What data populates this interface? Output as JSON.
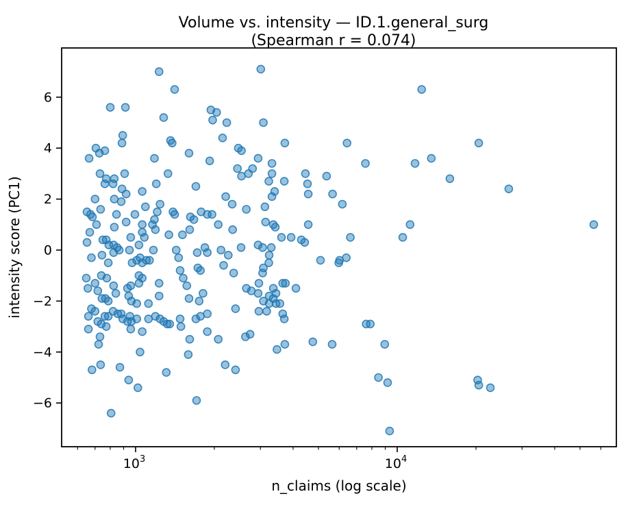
{
  "figure": {
    "title_line1": "Volume vs. intensity — ID.1.general_surg",
    "title_line2": "(Spearman r = 0.074)",
    "xlabel": "n_claims (log scale)",
    "ylabel": "intensity score (PC1)"
  },
  "chart_data": {
    "type": "scatter",
    "title": "Volume vs. intensity — ID.1.general_surg (Spearman r = 0.074)",
    "subtitle_stat": "Spearman r = 0.074",
    "xlabel": "n_claims (log scale)",
    "ylabel": "intensity score (PC1)",
    "x_scale": "log",
    "grid": false,
    "legend": "none",
    "xlim": [
      520,
      69000
    ],
    "ylim": [
      -7.7,
      7.9
    ],
    "marker": {
      "color": "#1f77b4",
      "alpha": 0.5,
      "radius_px": 5.5
    },
    "x_major_ticks": [
      {
        "v": 1000,
        "base": "10",
        "exp": "3"
      },
      {
        "v": 10000,
        "base": "10",
        "exp": "4"
      }
    ],
    "x_minor_ticks": [
      600,
      700,
      800,
      900,
      2000,
      3000,
      4000,
      5000,
      6000,
      7000,
      8000,
      9000,
      20000,
      30000,
      40000,
      50000,
      60000
    ],
    "y_ticks": [
      {
        "v": -6,
        "label": "−6"
      },
      {
        "v": -4,
        "label": "−4"
      },
      {
        "v": -2,
        "label": "−2"
      },
      {
        "v": 0,
        "label": "0"
      },
      {
        "v": 2,
        "label": "2"
      },
      {
        "v": 4,
        "label": "4"
      },
      {
        "v": 6,
        "label": "6"
      }
    ],
    "points": [
      [
        1230,
        7.0
      ],
      [
        1410,
        6.3
      ],
      [
        800,
        5.6
      ],
      [
        914,
        5.6
      ],
      [
        1280,
        5.2
      ],
      [
        1940,
        5.5
      ],
      [
        2040,
        5.4
      ],
      [
        1970,
        5.1
      ],
      [
        2230,
        5.0
      ],
      [
        893,
        4.5
      ],
      [
        887,
        4.2
      ],
      [
        705,
        4.0
      ],
      [
        763,
        3.9
      ],
      [
        727,
        3.8
      ],
      [
        664,
        3.6
      ],
      [
        2150,
        4.4
      ],
      [
        1360,
        4.3
      ],
      [
        1380,
        4.2
      ],
      [
        1600,
        3.8
      ],
      [
        1180,
        3.6
      ],
      [
        1920,
        3.5
      ],
      [
        2470,
        4.0
      ],
      [
        2540,
        3.9
      ],
      [
        2450,
        3.2
      ],
      [
        731,
        3.0
      ],
      [
        908,
        3.0
      ],
      [
        772,
        2.8
      ],
      [
        829,
        2.8
      ],
      [
        1330,
        3.0
      ],
      [
        2540,
        2.9
      ],
      [
        3010,
        7.1
      ],
      [
        12400,
        6.3
      ],
      [
        3080,
        5.0
      ],
      [
        3720,
        4.2
      ],
      [
        6430,
        4.2
      ],
      [
        2940,
        3.6
      ],
      [
        2800,
        3.2
      ],
      [
        2700,
        3.0
      ],
      [
        3320,
        3.4
      ],
      [
        3320,
        3.0
      ],
      [
        4460,
        3.0
      ],
      [
        5370,
        2.9
      ],
      [
        7560,
        3.4
      ],
      [
        11700,
        3.4
      ],
      [
        3230,
        2.7
      ],
      [
        3700,
        2.7
      ],
      [
        20500,
        4.2
      ],
      [
        13500,
        3.6
      ],
      [
        15900,
        2.8
      ],
      [
        763,
        2.6
      ],
      [
        820,
        2.6
      ],
      [
        887,
        2.4
      ],
      [
        920,
        2.2
      ],
      [
        1200,
        2.6
      ],
      [
        1700,
        2.5
      ],
      [
        1060,
        2.3
      ],
      [
        829,
        2.0
      ],
      [
        881,
        1.9
      ],
      [
        700,
        2.0
      ],
      [
        2210,
        2.1
      ],
      [
        2340,
        1.8
      ],
      [
        652,
        1.5
      ],
      [
        672,
        1.4
      ],
      [
        684,
        1.3
      ],
      [
        735,
        1.6
      ],
      [
        845,
        1.4
      ],
      [
        994,
        1.4
      ],
      [
        1090,
        1.7
      ],
      [
        1210,
        1.5
      ],
      [
        1240,
        1.8
      ],
      [
        1390,
        1.5
      ],
      [
        1410,
        1.4
      ],
      [
        1620,
        1.3
      ],
      [
        1670,
        1.2
      ],
      [
        1780,
        1.5
      ],
      [
        1880,
        1.4
      ],
      [
        1960,
        1.4
      ],
      [
        709,
        1.0
      ],
      [
        829,
        0.9
      ],
      [
        920,
        1.1
      ],
      [
        1060,
        1.0
      ],
      [
        1180,
        1.2
      ],
      [
        1160,
        1.0
      ],
      [
        1190,
        0.8
      ],
      [
        1060,
        0.7
      ],
      [
        1340,
        0.6
      ],
      [
        1510,
        0.6
      ],
      [
        1610,
        0.8
      ],
      [
        2070,
        1.0
      ],
      [
        2350,
        0.8
      ],
      [
        668,
        0.7
      ],
      [
        652,
        0.3
      ],
      [
        749,
        0.4
      ],
      [
        772,
        0.4
      ],
      [
        790,
        0.2
      ],
      [
        824,
        0.2
      ],
      [
        850,
        0.1
      ],
      [
        866,
        0.0
      ],
      [
        958,
        0.5
      ],
      [
        1030,
        0.2
      ],
      [
        1080,
        0.5
      ],
      [
        1170,
        0.0
      ],
      [
        947,
        0.0
      ],
      [
        1430,
        0.0
      ],
      [
        1840,
        0.1
      ],
      [
        2120,
        0.0
      ],
      [
        2530,
        0.1
      ],
      [
        678,
        -0.3
      ],
      [
        744,
        -0.2
      ],
      [
        786,
        -0.5
      ],
      [
        824,
        -0.1
      ],
      [
        970,
        -0.5
      ],
      [
        1010,
        -0.4
      ],
      [
        1040,
        -0.3
      ],
      [
        1060,
        -0.5
      ],
      [
        1100,
        -0.4
      ],
      [
        1130,
        -0.4
      ],
      [
        1460,
        -0.3
      ],
      [
        1720,
        -0.1
      ],
      [
        1880,
        -0.1
      ],
      [
        1730,
        -0.7
      ],
      [
        1770,
        -0.8
      ],
      [
        2170,
        -0.6
      ],
      [
        2370,
        -0.9
      ],
      [
        648,
        -1.1
      ],
      [
        657,
        -1.5
      ],
      [
        700,
        -1.3
      ],
      [
        717,
        -1.6
      ],
      [
        740,
        -1.0
      ],
      [
        776,
        -1.1
      ],
      [
        744,
        -1.9
      ],
      [
        767,
        -1.9
      ],
      [
        786,
        -2.0
      ],
      [
        824,
        -1.4
      ],
      [
        840,
        -1.7
      ],
      [
        931,
        -1.5
      ],
      [
        958,
        -1.4
      ],
      [
        941,
        -1.8
      ],
      [
        964,
        -2.0
      ],
      [
        1010,
        -2.1
      ],
      [
        1030,
        -1.0
      ],
      [
        1060,
        -1.1
      ],
      [
        1030,
        -1.3
      ],
      [
        1230,
        -1.3
      ],
      [
        1230,
        -1.8
      ],
      [
        1120,
        -2.1
      ],
      [
        1480,
        -0.8
      ],
      [
        1520,
        -1.1
      ],
      [
        1570,
        -1.4
      ],
      [
        1600,
        -1.9
      ],
      [
        1750,
        -2.0
      ],
      [
        1810,
        -1.7
      ],
      [
        2410,
        -2.3
      ],
      [
        820,
        -2.4
      ],
      [
        855,
        -2.5
      ],
      [
        881,
        -2.5
      ],
      [
        678,
        -2.3
      ],
      [
        700,
        -2.4
      ],
      [
        952,
        -2.6
      ],
      [
        1770,
        -2.6
      ],
      [
        1880,
        -2.5
      ],
      [
        660,
        -2.6
      ],
      [
        2260,
        -0.2
      ],
      [
        4540,
        2.6
      ],
      [
        4570,
        2.2
      ],
      [
        3400,
        2.3
      ],
      [
        3320,
        2.1
      ],
      [
        5660,
        2.2
      ],
      [
        6170,
        1.8
      ],
      [
        2650,
        1.6
      ],
      [
        3120,
        1.7
      ],
      [
        3140,
        1.1
      ],
      [
        3360,
        1.0
      ],
      [
        3420,
        0.9
      ],
      [
        4570,
        1.0
      ],
      [
        3610,
        0.5
      ],
      [
        3930,
        0.5
      ],
      [
        4300,
        0.4
      ],
      [
        4430,
        0.3
      ],
      [
        2940,
        0.2
      ],
      [
        3060,
        0.1
      ],
      [
        3300,
        0.1
      ],
      [
        3240,
        -0.2
      ],
      [
        6620,
        0.5
      ],
      [
        10500,
        0.5
      ],
      [
        11200,
        1.0
      ],
      [
        5090,
        -0.4
      ],
      [
        6020,
        -0.4
      ],
      [
        6390,
        -0.3
      ],
      [
        5980,
        -0.5
      ],
      [
        3230,
        -0.5
      ],
      [
        3080,
        -0.7
      ],
      [
        3060,
        -0.9
      ],
      [
        2960,
        -1.3
      ],
      [
        3650,
        -1.3
      ],
      [
        3740,
        -1.3
      ],
      [
        4100,
        -1.5
      ],
      [
        3360,
        -1.5
      ],
      [
        3440,
        -1.7
      ],
      [
        3240,
        -1.8
      ],
      [
        3360,
        -1.9
      ],
      [
        2770,
        -1.6
      ],
      [
        2940,
        -1.7
      ],
      [
        3080,
        -2.0
      ],
      [
        3240,
        -2.1
      ],
      [
        3440,
        -2.1
      ],
      [
        3560,
        -2.1
      ],
      [
        2960,
        -2.4
      ],
      [
        3170,
        -2.4
      ],
      [
        3650,
        -2.5
      ],
      [
        2650,
        -1.5
      ],
      [
        26700,
        2.4
      ],
      [
        56400,
        1.0
      ],
      [
        660,
        -3.1
      ],
      [
        717,
        -2.8
      ],
      [
        740,
        -2.9
      ],
      [
        763,
        -2.6
      ],
      [
        786,
        -2.6
      ],
      [
        772,
        -3.0
      ],
      [
        893,
        -2.7
      ],
      [
        931,
        -2.8
      ],
      [
        964,
        -2.8
      ],
      [
        958,
        -3.1
      ],
      [
        1010,
        -2.7
      ],
      [
        1060,
        -3.2
      ],
      [
        1120,
        -2.7
      ],
      [
        1190,
        -2.6
      ],
      [
        1240,
        -2.7
      ],
      [
        1280,
        -2.8
      ],
      [
        1320,
        -2.9
      ],
      [
        1350,
        -2.9
      ],
      [
        1480,
        -2.7
      ],
      [
        1490,
        -3.0
      ],
      [
        1700,
        -2.7
      ],
      [
        1880,
        -3.2
      ],
      [
        1610,
        -3.5
      ],
      [
        2070,
        -3.5
      ],
      [
        731,
        -3.4
      ],
      [
        722,
        -3.7
      ],
      [
        1040,
        -4.0
      ],
      [
        1590,
        -4.1
      ],
      [
        735,
        -4.5
      ],
      [
        681,
        -4.7
      ],
      [
        871,
        -4.6
      ],
      [
        1310,
        -4.8
      ],
      [
        941,
        -5.1
      ],
      [
        1020,
        -5.4
      ],
      [
        2200,
        -4.5
      ],
      [
        2410,
        -4.7
      ],
      [
        1710,
        -5.9
      ],
      [
        806,
        -6.4
      ],
      [
        2630,
        -3.4
      ],
      [
        3700,
        -2.7
      ],
      [
        2740,
        -3.3
      ],
      [
        3470,
        -3.9
      ],
      [
        3720,
        -3.7
      ],
      [
        4760,
        -3.6
      ],
      [
        5640,
        -3.7
      ],
      [
        7610,
        -2.9
      ],
      [
        7890,
        -2.9
      ],
      [
        8960,
        -3.7
      ],
      [
        8480,
        -5.0
      ],
      [
        9190,
        -5.2
      ],
      [
        9350,
        -7.1
      ],
      [
        20300,
        -5.1
      ],
      [
        20500,
        -5.3
      ],
      [
        22700,
        -5.4
      ]
    ]
  }
}
